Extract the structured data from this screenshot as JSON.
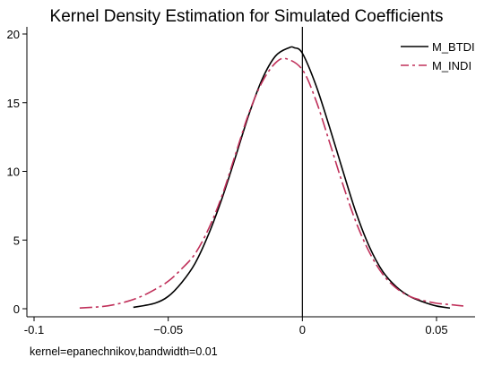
{
  "chart_data": {
    "type": "line",
    "title": "Kernel Density Estimation for Simulated Coefficients",
    "note": "kernel=epanechnikov,bandwidth=0.01",
    "xlabel": "",
    "ylabel": "",
    "xlim": [
      -0.1,
      0.065
    ],
    "ylim": [
      0,
      20
    ],
    "x_ticks": [
      -0.1,
      -0.05,
      0,
      0.05
    ],
    "x_tick_labels": [
      "-0.1",
      "−0.05",
      "0",
      "0.05"
    ],
    "y_ticks": [
      0,
      5,
      10,
      15,
      20
    ],
    "y_tick_labels": [
      "0",
      "5",
      "10",
      "15",
      "20"
    ],
    "vline_x": 0,
    "grid": false,
    "legend_position": "top-right",
    "series": [
      {
        "name": "M_BTDI",
        "color": "#000000",
        "dash": "solid",
        "x": [
          -0.063,
          -0.055,
          -0.05,
          -0.045,
          -0.04,
          -0.035,
          -0.03,
          -0.025,
          -0.02,
          -0.015,
          -0.01,
          -0.005,
          -0.003,
          0,
          0.005,
          0.01,
          0.015,
          0.02,
          0.025,
          0.03,
          0.035,
          0.04,
          0.045,
          0.05,
          0.055
        ],
        "y": [
          0.1,
          0.4,
          0.9,
          1.9,
          3.3,
          5.4,
          8.0,
          11.0,
          14.1,
          16.7,
          18.4,
          19.0,
          19.0,
          18.6,
          16.3,
          13.3,
          10.1,
          7.0,
          4.5,
          2.7,
          1.6,
          0.9,
          0.5,
          0.2,
          0.05
        ]
      },
      {
        "name": "M_INDI",
        "color": "#c0305a",
        "dash": "dashdot",
        "x": [
          -0.083,
          -0.075,
          -0.07,
          -0.065,
          -0.06,
          -0.055,
          -0.05,
          -0.045,
          -0.04,
          -0.035,
          -0.03,
          -0.025,
          -0.02,
          -0.015,
          -0.01,
          -0.006,
          0,
          0.005,
          0.01,
          0.015,
          0.02,
          0.025,
          0.03,
          0.035,
          0.04,
          0.045,
          0.05,
          0.055,
          0.06
        ],
        "y": [
          0.05,
          0.15,
          0.3,
          0.55,
          0.9,
          1.4,
          2.0,
          2.9,
          4.0,
          5.8,
          8.2,
          11.2,
          14.2,
          16.5,
          17.9,
          18.2,
          17.4,
          15.2,
          12.2,
          9.1,
          6.3,
          4.1,
          2.5,
          1.5,
          0.9,
          0.6,
          0.4,
          0.3,
          0.2
        ]
      }
    ]
  }
}
